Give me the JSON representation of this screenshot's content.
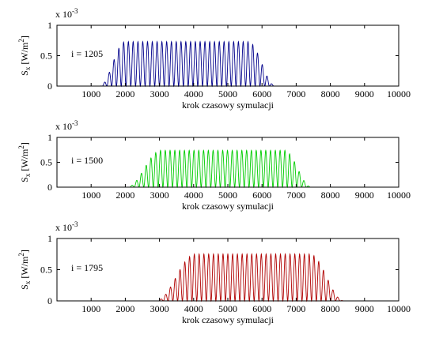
{
  "chart_data": [
    {
      "type": "line",
      "scale_label": "x 10",
      "scale_exponent": "-3",
      "xlabel": "krok czasowy symulacji",
      "ylabel": "S",
      "ylabel_sub": "x",
      "ylabel_unit": "[W/m",
      "ylabel_unit_sup": "2",
      "ylabel_unit_close": "]",
      "annotation": "i = 1205",
      "xlim": [
        0,
        10000
      ],
      "ylim": [
        0,
        1
      ],
      "xticks": [
        1000,
        2000,
        3000,
        4000,
        5000,
        6000,
        7000,
        8000,
        9000,
        10000
      ],
      "xtick_labels": [
        "1000",
        "2000",
        "3000",
        "4000",
        "5000",
        "6000",
        "7000",
        "8000",
        "9000",
        "10000"
      ],
      "yticks": [
        0,
        0.5,
        1
      ],
      "ytick_labels": [
        "0",
        "0.5",
        "1"
      ],
      "color": "#00008b",
      "series": [
        {
          "waveform": "oscillating pulse",
          "x_start": 600,
          "x_end": 6800,
          "rise": [
            1250,
            2000
          ],
          "plateau": [
            2000,
            5600
          ],
          "fall": [
            5600,
            6400
          ],
          "peak_value": 0.73,
          "period": 140
        }
      ]
    },
    {
      "type": "line",
      "scale_label": "x 10",
      "scale_exponent": "-3",
      "xlabel": "krok czasowy symulacji",
      "ylabel": "S",
      "ylabel_sub": "x",
      "ylabel_unit": "[W/m",
      "ylabel_unit_sup": "2",
      "ylabel_unit_close": "]",
      "annotation": "i = 1500",
      "xlim": [
        0,
        10000
      ],
      "ylim": [
        0,
        1
      ],
      "xticks": [
        1000,
        2000,
        3000,
        4000,
        5000,
        6000,
        7000,
        8000,
        9000,
        10000
      ],
      "xtick_labels": [
        "1000",
        "2000",
        "3000",
        "4000",
        "5000",
        "6000",
        "7000",
        "8000",
        "9000",
        "10000"
      ],
      "yticks": [
        0,
        0.5,
        1
      ],
      "ytick_labels": [
        "0",
        "0.5",
        "1"
      ],
      "color": "#00cc00",
      "series": [
        {
          "waveform": "oscillating pulse",
          "x_start": 1000,
          "x_end": 9900,
          "rise": [
            2050,
            3050
          ],
          "plateau": [
            3050,
            6650
          ],
          "fall": [
            6650,
            7450
          ],
          "peak_value": 0.74,
          "period": 140
        }
      ]
    },
    {
      "type": "line",
      "scale_label": "x 10",
      "scale_exponent": "-3",
      "xlabel": "krok czasowy symulacji",
      "ylabel": "S",
      "ylabel_sub": "x",
      "ylabel_unit": "[W/m",
      "ylabel_unit_sup": "2",
      "ylabel_unit_close": "]",
      "annotation": "i = 1795",
      "xlim": [
        0,
        10000
      ],
      "ylim": [
        0,
        1
      ],
      "xticks": [
        1000,
        2000,
        3000,
        4000,
        5000,
        6000,
        7000,
        8000,
        9000,
        10000
      ],
      "xtick_labels": [
        "1000",
        "2000",
        "3000",
        "4000",
        "5000",
        "6000",
        "7000",
        "8000",
        "9000",
        "10000"
      ],
      "yticks": [
        0,
        0.5,
        1
      ],
      "ytick_labels": [
        "0",
        "0.5",
        "1"
      ],
      "color": "#b00000",
      "series": [
        {
          "waveform": "oscillating pulse",
          "x_start": 1300,
          "x_end": 10000,
          "rise": [
            2900,
            4050
          ],
          "plateau": [
            4050,
            7400
          ],
          "fall": [
            7400,
            8400
          ],
          "peak_value": 0.75,
          "period": 140
        }
      ]
    }
  ]
}
